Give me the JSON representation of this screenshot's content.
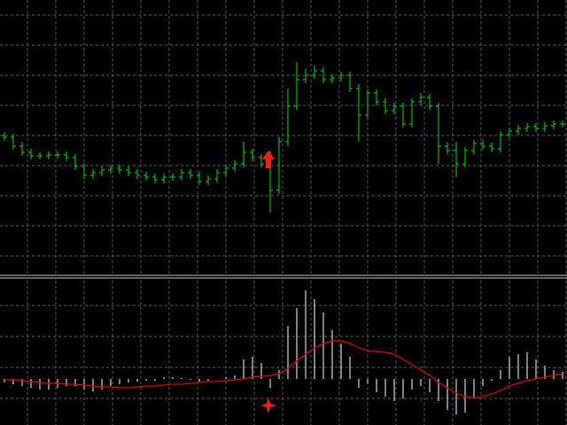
{
  "chart_data": [
    {
      "type": "ohlc",
      "color": "#00e000",
      "grid": true,
      "ylim": [
        0,
        310
      ],
      "open": [
        157,
        155,
        145,
        138,
        134,
        134,
        135,
        135,
        132,
        122,
        112,
        115,
        118,
        120,
        118,
        115,
        112,
        110,
        107,
        110,
        110,
        115,
        112,
        105,
        108,
        115,
        120,
        125,
        138,
        132,
        125,
        95,
        150,
        190,
        220,
        225,
        230,
        220,
        222,
        225,
        210,
        180,
        205,
        195,
        185,
        190,
        170,
        195,
        200,
        190,
        145,
        140,
        125,
        140,
        148,
        145,
        142,
        158,
        162,
        165,
        167,
        165,
        168,
        170
      ],
      "high": [
        161,
        159,
        149,
        142,
        138,
        139,
        139,
        139,
        136,
        126,
        119,
        122,
        124,
        124,
        122,
        119,
        116,
        114,
        114,
        114,
        119,
        119,
        116,
        112,
        119,
        124,
        129,
        150,
        142,
        136,
        140,
        155,
        210,
        240,
        232,
        236,
        234,
        226,
        229,
        229,
        215,
        209,
        209,
        199,
        194,
        194,
        199,
        205,
        204,
        194,
        149,
        150,
        144,
        152,
        152,
        149,
        162,
        166,
        169,
        171,
        171,
        172,
        174,
        174
      ],
      "low": [
        151,
        141,
        134,
        130,
        130,
        130,
        131,
        128,
        118,
        108,
        108,
        111,
        114,
        114,
        111,
        108,
        106,
        103,
        103,
        106,
        106,
        108,
        101,
        101,
        104,
        111,
        116,
        121,
        128,
        121,
        70,
        91,
        145,
        186,
        216,
        221,
        216,
        216,
        218,
        206,
        150,
        176,
        191,
        181,
        181,
        166,
        166,
        191,
        186,
        125,
        136,
        110,
        121,
        136,
        141,
        138,
        138,
        154,
        158,
        161,
        161,
        161,
        164,
        166
      ],
      "close": [
        155,
        145,
        138,
        134,
        134,
        135,
        135,
        132,
        122,
        112,
        115,
        118,
        120,
        118,
        115,
        112,
        110,
        107,
        110,
        110,
        115,
        112,
        105,
        108,
        115,
        120,
        125,
        138,
        132,
        125,
        95,
        150,
        190,
        220,
        225,
        230,
        220,
        222,
        225,
        210,
        180,
        205,
        195,
        185,
        190,
        170,
        195,
        200,
        190,
        145,
        140,
        125,
        140,
        148,
        145,
        142,
        158,
        162,
        165,
        167,
        165,
        168,
        170,
        170
      ]
    },
    {
      "type": "macd",
      "grid": true,
      "ylim": [
        -52,
        113
      ],
      "hist_color": "#ffffff",
      "signal_color": "#e00000",
      "values": [
        -4,
        -6,
        -8,
        -10,
        -12,
        -12,
        -10,
        -8,
        -8,
        -12,
        -14,
        -12,
        -8,
        -6,
        -4,
        -3,
        -2,
        -2,
        2,
        2,
        1,
        -1,
        -3,
        -2,
        0,
        2,
        4,
        22,
        25,
        18,
        -10,
        10,
        60,
        80,
        100,
        90,
        75,
        55,
        40,
        25,
        -10,
        -5,
        -15,
        -20,
        -25,
        -22,
        -12,
        -8,
        -15,
        -25,
        -35,
        -40,
        -38,
        -20,
        -8,
        -2,
        10,
        25,
        28,
        30,
        22,
        15,
        10,
        8
      ],
      "signal": [
        -1,
        -1,
        -2,
        -3,
        -4,
        -5,
        -5,
        -6,
        -6,
        -7,
        -8,
        -9,
        -9,
        -10,
        -10,
        -9,
        -8,
        -8,
        -7,
        -6,
        -6,
        -5,
        -4,
        -3,
        -3,
        -2,
        -1,
        0,
        2,
        3,
        4,
        6,
        12,
        20,
        28,
        35,
        40,
        43,
        43,
        40,
        35,
        32,
        31,
        30,
        28,
        22,
        16,
        10,
        4,
        -4,
        -10,
        -16,
        -20,
        -21,
        -20,
        -17,
        -13,
        -8,
        -5,
        -2,
        0,
        2,
        4,
        6
      ]
    }
  ]
}
